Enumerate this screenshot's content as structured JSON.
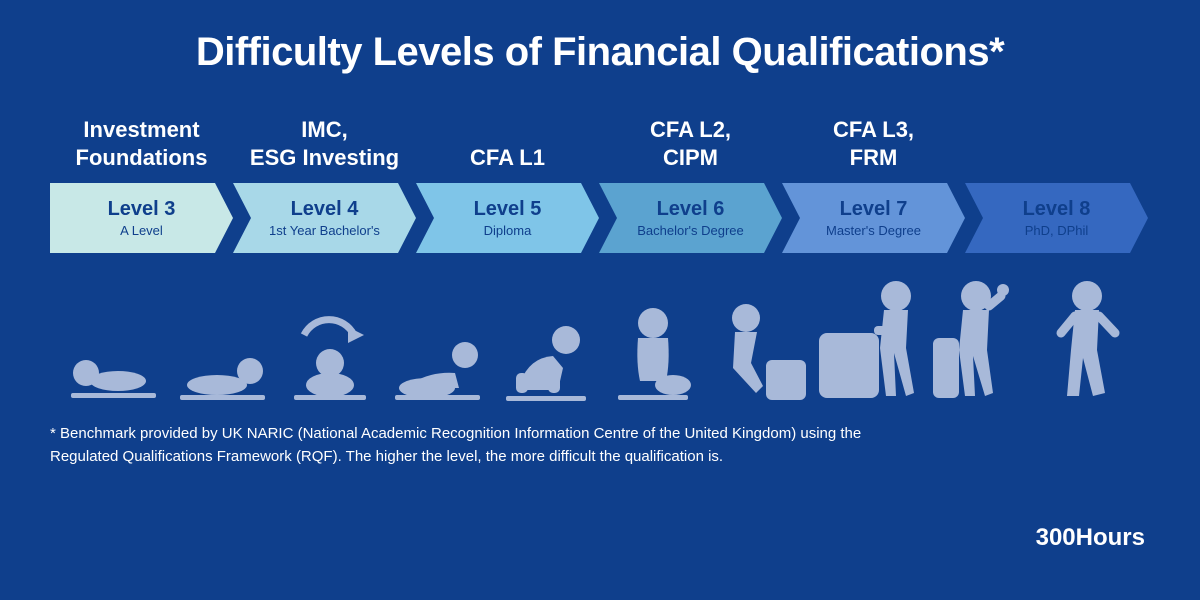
{
  "background_color": "#0f3f8c",
  "text_color": "#ffffff",
  "icon_color": "#a8b9d9",
  "chevron_text_color": "#0f3f8c",
  "title": "Difficulty Levels of Financial Qualifications*",
  "title_fontsize": 40,
  "qual_fontsize": 22,
  "level_name_fontsize": 20,
  "level_sub_fontsize": 13,
  "footnote_fontsize": 15,
  "brand_fontsize": 24,
  "qualifications": [
    "Investment\nFoundations",
    "IMC,\nESG Investing",
    "CFA L1",
    "CFA L2,\nCIPM",
    "CFA L3,\nFRM",
    ""
  ],
  "levels": [
    {
      "name": "Level 3",
      "sub": "A Level",
      "color": "#c8e8e7"
    },
    {
      "name": "Level 4",
      "sub": "1st Year Bachelor's",
      "color": "#a8d8e8"
    },
    {
      "name": "Level 5",
      "sub": "Diploma",
      "color": "#7fc5e8"
    },
    {
      "name": "Level 6",
      "sub": "Bachelor's Degree",
      "color": "#5ba3d0"
    },
    {
      "name": "Level 7",
      "sub": "Master's Degree",
      "color": "#6394d9"
    },
    {
      "name": "Level 8",
      "sub": "PhD, DPhil",
      "color": "#3568c0"
    }
  ],
  "footnote": "* Benchmark provided by UK NARIC (National Academic Recognition Information Centre of the United Kingdom) using the\n   Regulated Qualifications Framework (RQF). The higher the level, the more difficult the qualification is.",
  "brand": "300Hours"
}
